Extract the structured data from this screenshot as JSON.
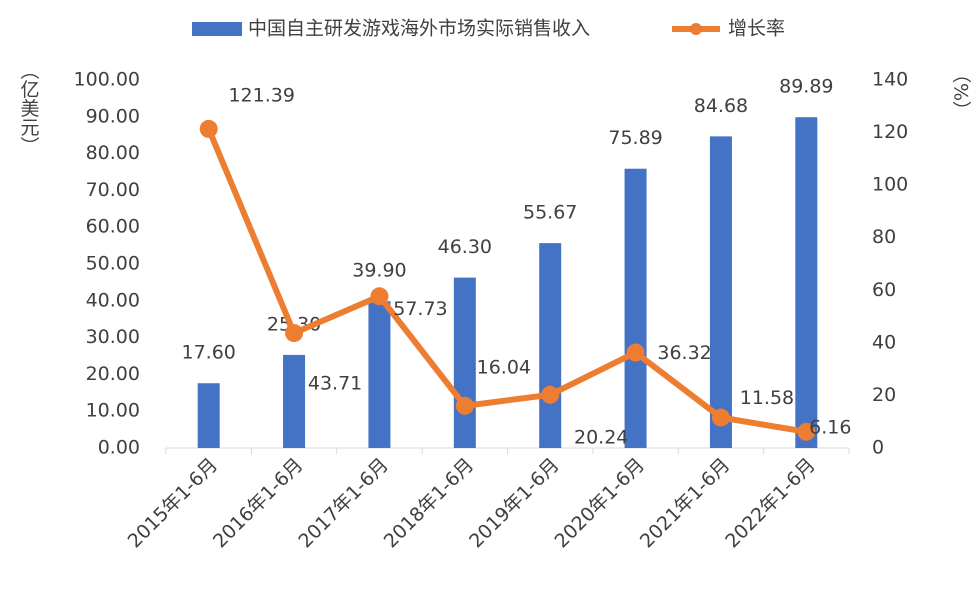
{
  "chart_data": {
    "type": "bar-line",
    "categories": [
      "2015年1-6月",
      "2016年1-6月",
      "2017年1-6月",
      "2018年1-6月",
      "2019年1-6月",
      "2020年1-6月",
      "2021年1-6月",
      "2022年1-6月"
    ],
    "y_label": "（亿美元）",
    "y2_label": "（%）",
    "series": [
      {
        "name": "中国自主研发游戏海外市场实际销售收入",
        "type": "bar",
        "color": "#4472c4",
        "values": [
          17.6,
          25.3,
          39.9,
          46.3,
          55.67,
          75.89,
          84.68,
          89.89
        ],
        "value_labels": [
          "17.60",
          "25.30",
          "39.90",
          "46.30",
          "55.67",
          "75.89",
          "84.68",
          "89.89"
        ]
      },
      {
        "name": "增长率",
        "type": "line",
        "axis": "y2",
        "color": "#ed7d31",
        "values": [
          121.39,
          43.71,
          57.73,
          16.04,
          20.24,
          36.32,
          11.58,
          6.16
        ]
      }
    ],
    "ylim": [
      0,
      100
    ],
    "yticks": [
      {
        "value": 0,
        "label": "0.00"
      },
      {
        "value": 10,
        "label": "10.00"
      },
      {
        "value": 20,
        "label": "20.00"
      },
      {
        "value": 30,
        "label": "30.00"
      },
      {
        "value": 40,
        "label": "40.00"
      },
      {
        "value": 50,
        "label": "50.00"
      },
      {
        "value": 60,
        "label": "60.00"
      },
      {
        "value": 70,
        "label": "70.00"
      },
      {
        "value": 80,
        "label": "80.00"
      },
      {
        "value": 90,
        "label": "90.00"
      },
      {
        "value": 100,
        "label": "100.00"
      }
    ],
    "y2lim": [
      0,
      140
    ],
    "y2ticks": [
      0,
      20,
      40,
      60,
      80,
      100,
      120,
      140
    ]
  }
}
